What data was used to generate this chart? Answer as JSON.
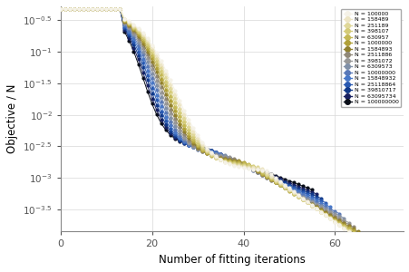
{
  "N_values": [
    100000,
    158489,
    251189,
    398107,
    630957,
    1000000,
    1584893,
    2511886,
    3981072,
    6309573,
    10000000,
    15848932,
    25118864,
    39810717,
    63095734,
    100000000
  ],
  "palette_colors": [
    "#f5f2e8",
    "#ede5c5",
    "#e0d89a",
    "#d4cb78",
    "#c4b855",
    "#b0a038",
    "#908030",
    "#908878",
    "#989898",
    "#8090a8",
    "#5878b8",
    "#4878c8",
    "#2858b0",
    "#103888",
    "#182060",
    "#080d18"
  ],
  "xlabel": "Number of fitting iterations",
  "ylabel": "Objective / N",
  "ylim_log_min": -3.85,
  "ylim_log_max": -0.28,
  "xlim": [
    0,
    75
  ],
  "y_tick_positions": [
    -0.5,
    -1.0,
    -1.5,
    -2.0,
    -2.5,
    -3.0,
    -3.5
  ],
  "grid_color": "#d8d8d8",
  "markersize": 2.0,
  "linewidth": 0.7,
  "flat_start_log": -0.32,
  "flat_iters": 13
}
